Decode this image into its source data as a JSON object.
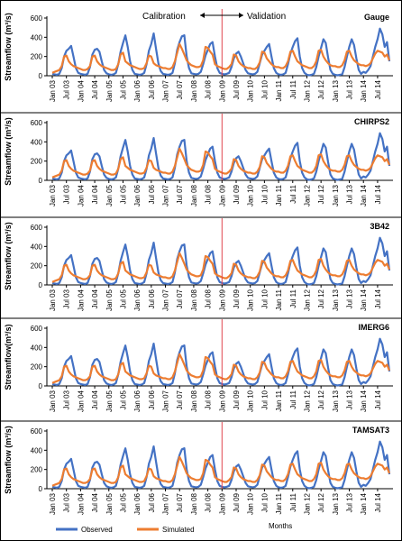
{
  "figure": {
    "annotation_left": "Calibration",
    "annotation_right": "Validation",
    "xlabel": "Months",
    "legend": [
      "Observed",
      "Simulated"
    ]
  },
  "colors": {
    "observed": "#4472C4",
    "simulated": "#ED7D31",
    "divider": "#E0454F",
    "axis": "#000000"
  },
  "chart_data": [
    {
      "type": "line",
      "title": "Gauge",
      "ylabel": "Streamflow (m³/s)",
      "ylim": [
        0,
        600
      ],
      "yticks": [
        0,
        200,
        400,
        600
      ]
    },
    {
      "type": "line",
      "title": "CHIRPS2",
      "ylabel": "Streamflow (m³/s)",
      "ylim": [
        0,
        600
      ],
      "yticks": [
        0,
        200,
        400,
        600
      ]
    },
    {
      "type": "line",
      "title": "3B42",
      "ylabel": "Streamflow (m³/s)",
      "ylim": [
        0,
        600
      ],
      "yticks": [
        0,
        200,
        400,
        600
      ]
    },
    {
      "type": "line",
      "title": "IMERG6",
      "ylabel": "Streamflow(m³/s)",
      "ylim": [
        0,
        600
      ],
      "yticks": [
        0,
        200,
        400,
        600
      ]
    },
    {
      "type": "line",
      "title": "TAMSAT3",
      "ylabel": "Streamflow (m³/s)",
      "ylim": [
        0,
        600
      ],
      "yticks": [
        0,
        200,
        400,
        600
      ]
    }
  ],
  "x_ticks": [
    "Jan 03",
    "Jul 03",
    "Jan 04",
    "Jul 04",
    "Jan 05",
    "Jul 05",
    "Jan 06",
    "Jul 06",
    "Jan 07",
    "Jul 07",
    "Jan 08",
    "Jul 08",
    "Jan 09",
    "Jul 09",
    "Jan 10",
    "Jul 10",
    "Jan 11",
    "Jul 11",
    "Jan 12",
    "Jul 12",
    "Jan 13",
    "Jul 13",
    "Jan 14",
    "Jul 14"
  ],
  "calibration_end": "Jan 09",
  "series_observed": [
    20,
    15,
    10,
    20,
    80,
    200,
    260,
    280,
    310,
    200,
    80,
    30,
    20,
    15,
    10,
    20,
    90,
    220,
    270,
    280,
    250,
    150,
    60,
    25,
    15,
    10,
    15,
    30,
    120,
    250,
    340,
    420,
    300,
    150,
    60,
    20,
    15,
    10,
    15,
    30,
    120,
    260,
    330,
    440,
    280,
    130,
    50,
    20,
    15,
    10,
    15,
    30,
    130,
    270,
    350,
    410,
    420,
    200,
    80,
    25,
    20,
    15,
    20,
    40,
    120,
    210,
    270,
    330,
    350,
    200,
    80,
    30,
    20,
    15,
    20,
    30,
    90,
    180,
    230,
    250,
    200,
    130,
    60,
    25,
    20,
    15,
    20,
    40,
    130,
    220,
    260,
    300,
    330,
    200,
    80,
    30,
    15,
    10,
    15,
    30,
    120,
    230,
    300,
    360,
    390,
    200,
    80,
    30,
    10,
    5,
    10,
    20,
    90,
    200,
    290,
    380,
    340,
    190,
    60,
    20,
    10,
    5,
    10,
    15,
    90,
    200,
    300,
    380,
    320,
    180,
    60,
    20,
    40,
    30,
    60,
    100,
    200,
    300,
    380,
    490,
    430,
    300,
    350,
    150
  ],
  "series_simulated": [
    30,
    40,
    50,
    60,
    100,
    200,
    210,
    150,
    120,
    100,
    90,
    80,
    70,
    60,
    60,
    70,
    100,
    200,
    210,
    150,
    120,
    100,
    90,
    80,
    70,
    60,
    60,
    70,
    120,
    220,
    240,
    150,
    130,
    110,
    100,
    90,
    80,
    70,
    70,
    80,
    130,
    210,
    200,
    130,
    110,
    100,
    90,
    80,
    80,
    70,
    70,
    90,
    150,
    240,
    330,
    280,
    220,
    160,
    130,
    110,
    100,
    90,
    90,
    100,
    160,
    300,
    290,
    250,
    220,
    120,
    100,
    90,
    80,
    70,
    70,
    90,
    120,
    220,
    210,
    150,
    120,
    100,
    90,
    80,
    80,
    70,
    70,
    90,
    140,
    250,
    240,
    180,
    150,
    120,
    100,
    90,
    90,
    80,
    80,
    100,
    150,
    250,
    260,
    200,
    150,
    130,
    110,
    100,
    90,
    80,
    80,
    100,
    150,
    260,
    270,
    200,
    160,
    130,
    110,
    100,
    100,
    90,
    90,
    110,
    160,
    250,
    260,
    200,
    160,
    140,
    120,
    110,
    110,
    100,
    110,
    130,
    180,
    230,
    260,
    250,
    240,
    200,
    220,
    160
  ]
}
